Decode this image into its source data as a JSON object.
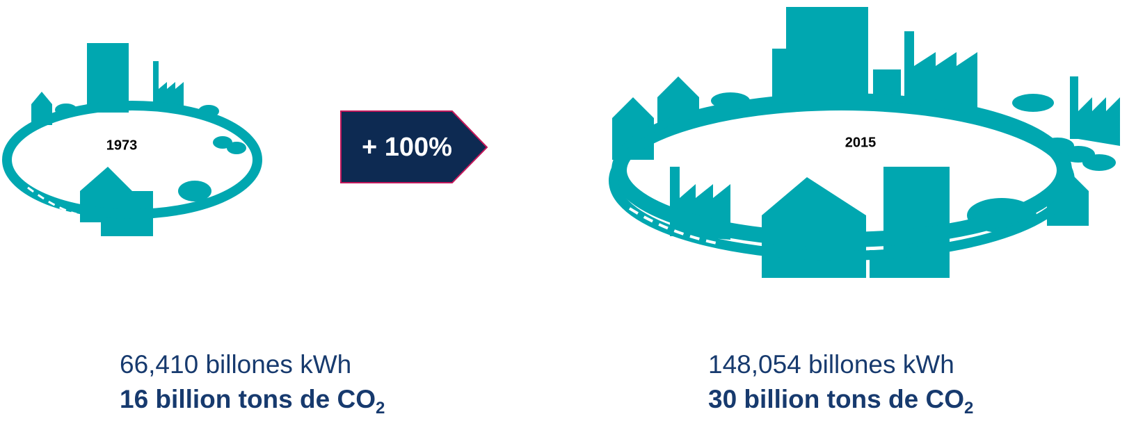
{
  "left": {
    "year": "1973",
    "energy": "66,410 billones kWh",
    "emissions": "16 billion tons de CO",
    "emissions_sub": "2"
  },
  "badge": {
    "label": "+ 100%"
  },
  "right": {
    "year": "2015",
    "energy": "148,054 billones kWh",
    "emissions": "30 billion tons de CO",
    "emissions_sub": "2"
  }
}
